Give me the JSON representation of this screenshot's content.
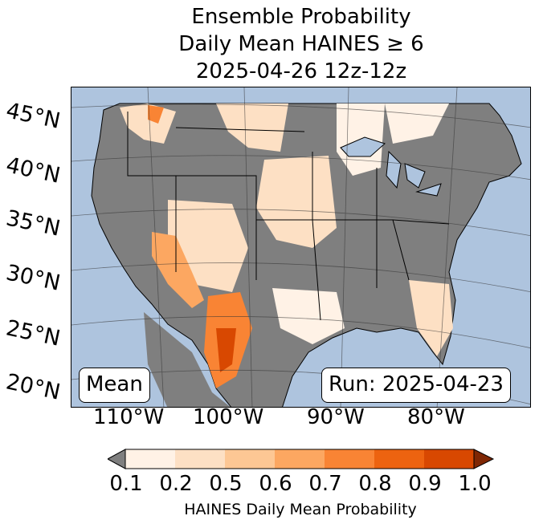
{
  "title": {
    "line1": "Ensemble Probability",
    "line2": "Daily Mean HAINES ≥ 6",
    "line3": "2025-04-26 12z-12z"
  },
  "map": {
    "lat_labels": [
      "45°N",
      "40°N",
      "35°N",
      "30°N",
      "25°N",
      "20°N"
    ],
    "lon_labels": [
      "110°W",
      "100°W",
      "90°W",
      "80°W"
    ],
    "colors": {
      "ocean": "#aec4de",
      "nodata_gray": "#7f7f7f",
      "border": "#000000"
    }
  },
  "annotations": {
    "left_box": "Mean",
    "right_box": "Run: 2025-04-23"
  },
  "colorbar": {
    "ticks": [
      "0.1",
      "0.2",
      "0.5",
      "0.6",
      "0.7",
      "0.8",
      "0.9",
      "1.0"
    ],
    "colors": [
      "#fff2e6",
      "#fde0c4",
      "#fdc794",
      "#fca761",
      "#f98434",
      "#ed6310",
      "#d84801"
    ],
    "under_color": "#7f7f7f",
    "over_color": "#7f2704",
    "label": "HAINES Daily Mean Probability"
  }
}
